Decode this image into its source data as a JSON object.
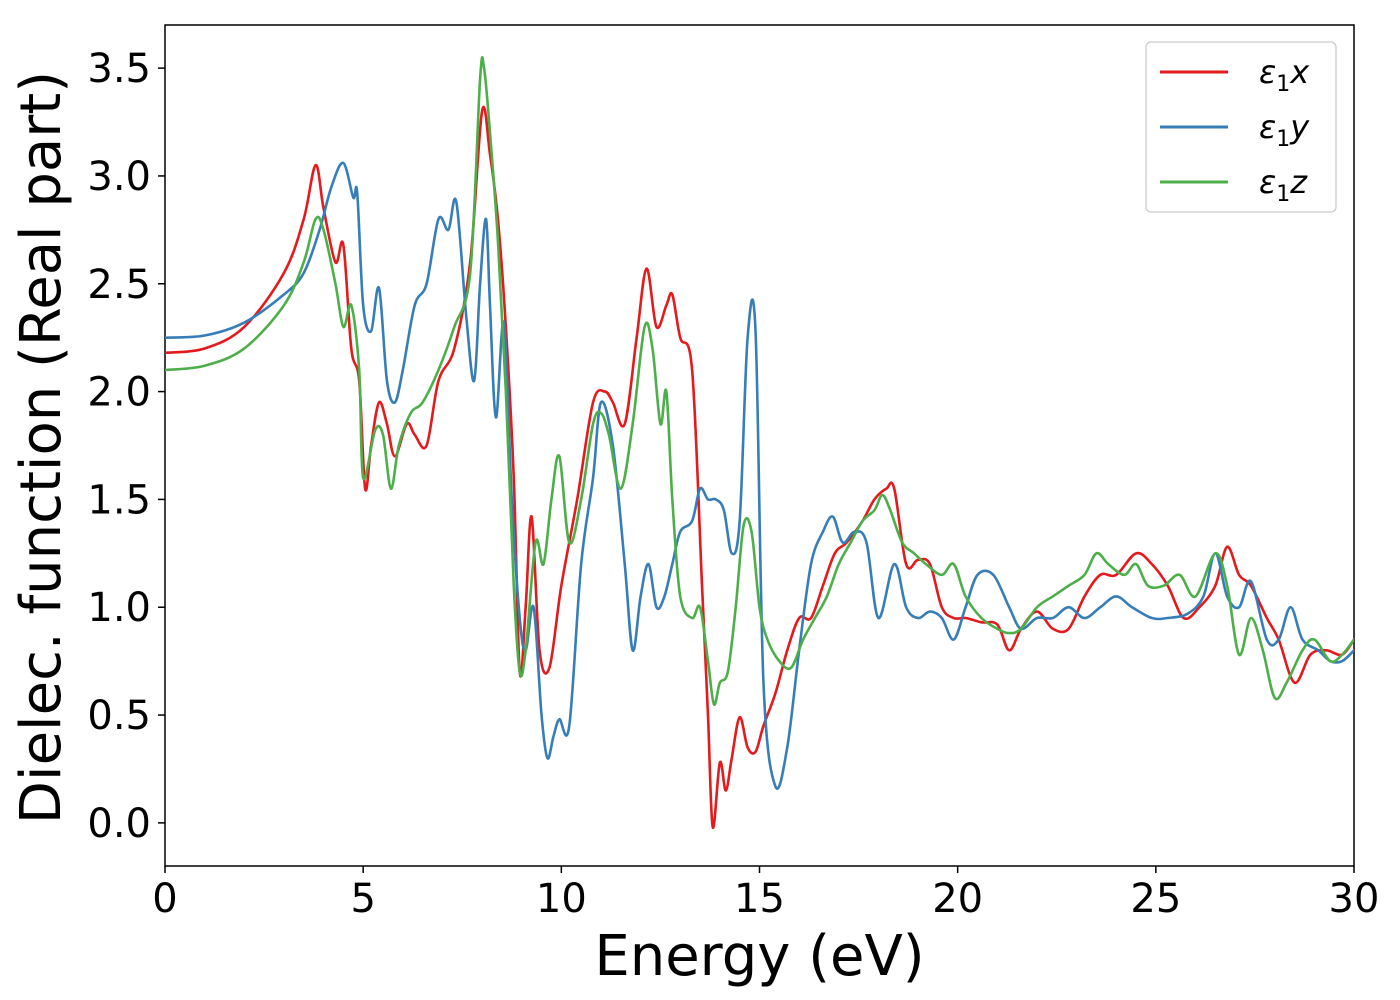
{
  "chart_data": {
    "type": "line",
    "title": "",
    "xlabel": "Energy (eV)",
    "ylabel": "Dielec. function (Real part)",
    "xlim": [
      0,
      30
    ],
    "ylim": [
      -0.2,
      3.7
    ],
    "xticks": [
      0,
      5,
      10,
      15,
      20,
      25,
      30
    ],
    "xtick_labels": [
      "0",
      "5",
      "10",
      "15",
      "20",
      "25",
      "30"
    ],
    "yticks": [
      0.0,
      0.5,
      1.0,
      1.5,
      2.0,
      2.5,
      3.0,
      3.5
    ],
    "ytick_labels": [
      "0.0",
      "0.5",
      "1.0",
      "1.5",
      "2.0",
      "2.5",
      "3.0",
      "3.5"
    ],
    "grid": false,
    "legend_position": "top-right",
    "series": [
      {
        "name": "ε1x",
        "legend_base": "ε",
        "legend_sub": "1",
        "legend_var": "x",
        "color": "#e41a1c",
        "x": [
          0,
          1,
          2,
          3,
          3.5,
          3.8,
          4.0,
          4.3,
          4.5,
          4.7,
          4.9,
          5.05,
          5.2,
          5.4,
          5.6,
          5.8,
          6.1,
          6.3,
          6.6,
          6.9,
          7.3,
          7.7,
          8.0,
          8.2,
          8.4,
          8.6,
          8.8,
          8.95,
          9.1,
          9.25,
          9.45,
          9.7,
          10.0,
          10.4,
          10.8,
          11.1,
          11.3,
          11.6,
          11.9,
          12.15,
          12.4,
          12.65,
          12.8,
          13.0,
          13.3,
          13.55,
          13.7,
          13.82,
          14.0,
          14.15,
          14.3,
          14.5,
          14.7,
          14.9,
          15.1,
          15.4,
          15.7,
          16.0,
          16.3,
          16.6,
          16.9,
          17.2,
          17.6,
          17.9,
          18.2,
          18.4,
          18.7,
          19.0,
          19.3,
          19.6,
          19.9,
          20.2,
          20.6,
          21.0,
          21.3,
          21.6,
          22.0,
          22.4,
          22.8,
          23.2,
          23.6,
          24.0,
          24.5,
          24.9,
          25.3,
          25.7,
          26.1,
          26.5,
          26.8,
          27.1,
          27.4,
          27.8,
          28.1,
          28.5,
          28.9,
          29.3,
          29.7,
          30.0
        ],
        "values": [
          2.18,
          2.2,
          2.3,
          2.55,
          2.8,
          3.05,
          2.85,
          2.6,
          2.68,
          2.2,
          2.05,
          1.55,
          1.75,
          1.95,
          1.85,
          1.7,
          1.85,
          1.8,
          1.75,
          2.05,
          2.2,
          2.6,
          3.3,
          3.1,
          2.8,
          2.3,
          1.6,
          0.7,
          1.0,
          1.42,
          0.8,
          0.72,
          1.1,
          1.5,
          1.95,
          2.0,
          1.95,
          1.85,
          2.25,
          2.57,
          2.3,
          2.4,
          2.45,
          2.25,
          2.1,
          1.1,
          0.5,
          -0.02,
          0.28,
          0.15,
          0.3,
          0.49,
          0.35,
          0.33,
          0.45,
          0.6,
          0.8,
          0.95,
          0.95,
          1.1,
          1.25,
          1.3,
          1.4,
          1.5,
          1.55,
          1.55,
          1.2,
          1.22,
          1.2,
          1.0,
          0.95,
          0.95,
          0.93,
          0.92,
          0.8,
          0.9,
          0.98,
          0.9,
          0.9,
          1.05,
          1.15,
          1.15,
          1.25,
          1.2,
          1.1,
          0.95,
          1.0,
          1.1,
          1.28,
          1.15,
          1.1,
          0.95,
          0.85,
          0.65,
          0.78,
          0.8,
          0.78,
          0.85
        ]
      },
      {
        "name": "ε1y",
        "legend_base": "ε",
        "legend_sub": "1",
        "legend_var": "y",
        "color": "#377eb8",
        "x": [
          0,
          1,
          2,
          3,
          3.5,
          3.9,
          4.2,
          4.5,
          4.75,
          4.85,
          5.0,
          5.2,
          5.4,
          5.6,
          5.8,
          6.0,
          6.3,
          6.6,
          6.9,
          7.15,
          7.35,
          7.6,
          7.8,
          7.95,
          8.1,
          8.2,
          8.35,
          8.55,
          8.75,
          8.95,
          9.1,
          9.3,
          9.5,
          9.65,
          9.8,
          9.95,
          10.2,
          10.5,
          10.8,
          11.0,
          11.3,
          11.6,
          11.8,
          12.0,
          12.2,
          12.4,
          12.6,
          12.8,
          13.0,
          13.3,
          13.5,
          13.7,
          13.9,
          14.1,
          14.3,
          14.5,
          14.7,
          14.9,
          15.1,
          15.4,
          15.7,
          16.0,
          16.3,
          16.6,
          16.85,
          17.1,
          17.4,
          17.7,
          18.0,
          18.4,
          18.7,
          19.0,
          19.3,
          19.6,
          19.9,
          20.2,
          20.5,
          20.9,
          21.3,
          21.6,
          22.0,
          22.4,
          22.8,
          23.2,
          23.6,
          24.0,
          24.4,
          24.9,
          25.3,
          25.8,
          26.2,
          26.5,
          26.8,
          27.1,
          27.4,
          27.8,
          28.1,
          28.4,
          28.7,
          29.1,
          29.4,
          29.7,
          30.0
        ],
        "values": [
          2.25,
          2.26,
          2.32,
          2.45,
          2.55,
          2.75,
          2.95,
          3.06,
          2.9,
          2.92,
          2.4,
          2.28,
          2.48,
          2.05,
          1.95,
          2.1,
          2.4,
          2.5,
          2.8,
          2.75,
          2.88,
          2.35,
          2.05,
          2.5,
          2.8,
          2.4,
          1.88,
          2.32,
          1.5,
          0.95,
          0.8,
          1.0,
          0.5,
          0.3,
          0.4,
          0.48,
          0.45,
          1.2,
          1.6,
          1.95,
          1.75,
          1.2,
          0.8,
          1.05,
          1.2,
          1.0,
          1.05,
          1.2,
          1.35,
          1.4,
          1.55,
          1.5,
          1.5,
          1.45,
          1.25,
          1.4,
          2.25,
          2.28,
          0.65,
          0.17,
          0.35,
          0.8,
          1.2,
          1.35,
          1.42,
          1.3,
          1.35,
          1.3,
          0.95,
          1.2,
          1.0,
          0.95,
          0.98,
          0.95,
          0.85,
          1.0,
          1.15,
          1.15,
          1.0,
          0.9,
          0.95,
          0.95,
          1.0,
          0.95,
          1.0,
          1.05,
          1.0,
          0.95,
          0.95,
          0.97,
          1.05,
          1.25,
          1.05,
          1.0,
          1.12,
          0.85,
          0.85,
          1.0,
          0.85,
          0.8,
          0.75,
          0.75,
          0.8
        ]
      },
      {
        "name": "ε1z",
        "legend_base": "ε",
        "legend_sub": "1",
        "legend_var": "z",
        "color": "#4daf4a",
        "x": [
          0,
          1,
          2,
          3,
          3.5,
          3.8,
          4.0,
          4.3,
          4.5,
          4.7,
          4.9,
          5.0,
          5.3,
          5.5,
          5.7,
          5.9,
          6.2,
          6.5,
          6.9,
          7.3,
          7.7,
          7.95,
          8.05,
          8.2,
          8.4,
          8.6,
          8.8,
          8.95,
          9.1,
          9.35,
          9.55,
          9.75,
          9.95,
          10.2,
          10.5,
          10.8,
          11.0,
          11.2,
          11.5,
          11.8,
          12.1,
          12.3,
          12.5,
          12.65,
          12.8,
          13.0,
          13.3,
          13.5,
          13.7,
          13.85,
          14.0,
          14.2,
          14.4,
          14.6,
          14.8,
          15.0,
          15.2,
          15.5,
          15.8,
          16.1,
          16.4,
          16.7,
          17.0,
          17.3,
          17.6,
          17.9,
          18.1,
          18.3,
          18.6,
          18.9,
          19.2,
          19.6,
          19.9,
          20.2,
          20.6,
          21.0,
          21.3,
          21.6,
          22.0,
          22.4,
          22.8,
          23.2,
          23.5,
          23.8,
          24.2,
          24.5,
          24.8,
          25.2,
          25.6,
          26.0,
          26.5,
          26.8,
          27.1,
          27.4,
          27.7,
          28.0,
          28.3,
          28.7,
          29.0,
          29.4,
          29.7,
          30.0
        ],
        "values": [
          2.1,
          2.12,
          2.2,
          2.4,
          2.6,
          2.8,
          2.75,
          2.5,
          2.3,
          2.4,
          2.1,
          1.6,
          1.82,
          1.8,
          1.55,
          1.75,
          1.9,
          1.95,
          2.1,
          2.3,
          2.55,
          3.45,
          3.5,
          3.2,
          2.7,
          2.0,
          1.1,
          0.7,
          0.8,
          1.3,
          1.2,
          1.5,
          1.7,
          1.3,
          1.5,
          1.85,
          1.9,
          1.8,
          1.55,
          1.85,
          2.3,
          2.2,
          1.85,
          2.0,
          1.5,
          1.05,
          0.95,
          1.0,
          0.75,
          0.55,
          0.65,
          0.7,
          1.0,
          1.38,
          1.35,
          1.0,
          0.85,
          0.75,
          0.72,
          0.85,
          0.95,
          1.05,
          1.2,
          1.3,
          1.4,
          1.45,
          1.52,
          1.45,
          1.3,
          1.25,
          1.2,
          1.15,
          1.2,
          1.05,
          0.95,
          0.9,
          0.88,
          0.9,
          1.0,
          1.05,
          1.1,
          1.15,
          1.25,
          1.2,
          1.15,
          1.2,
          1.1,
          1.1,
          1.15,
          1.05,
          1.25,
          1.1,
          0.78,
          0.95,
          0.8,
          0.58,
          0.65,
          0.8,
          0.85,
          0.75,
          0.78,
          0.85
        ]
      }
    ]
  }
}
